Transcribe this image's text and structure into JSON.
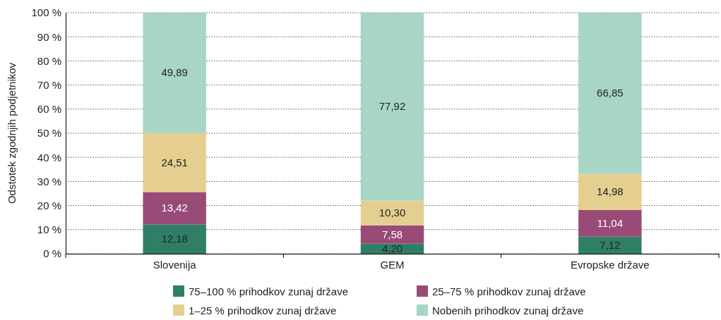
{
  "chart_data": {
    "type": "bar",
    "stacked": true,
    "ylabel": "Odstotek zgodnjih podjetnikov",
    "categories": [
      "Slovenija",
      "GEM",
      "Evropske države"
    ],
    "series": [
      {
        "name": "75–100 % prihodkov zunaj države",
        "color": "#2f7f67",
        "values": [
          12.18,
          4.2,
          7.12
        ],
        "value_labels": [
          "12,18",
          "4,20",
          "7,12"
        ]
      },
      {
        "name": "25–75 % prihodkov zunaj države",
        "color": "#9a4a77",
        "values": [
          13.42,
          7.58,
          11.04
        ],
        "value_labels": [
          "13,42",
          "7,58",
          "11,04"
        ]
      },
      {
        "name": "1–25 % prihodkov zunaj države",
        "color": "#e5cf90",
        "values": [
          24.51,
          10.3,
          14.98
        ],
        "value_labels": [
          "24,51",
          "10,30",
          "14,98"
        ]
      },
      {
        "name": "Nobenih prihodkov zunaj države",
        "color": "#a8d5c5",
        "values": [
          49.89,
          77.92,
          66.85
        ],
        "value_labels": [
          "49,89",
          "77,92",
          "66,85"
        ]
      }
    ],
    "ylim": [
      0,
      100
    ],
    "yticks": [
      {
        "value": 0,
        "label": "0 %"
      },
      {
        "value": 10,
        "label": "10 %"
      },
      {
        "value": 20,
        "label": "20 %"
      },
      {
        "value": 30,
        "label": "30 %"
      },
      {
        "value": 40,
        "label": "40 %"
      },
      {
        "value": 50,
        "label": "50 %"
      },
      {
        "value": 60,
        "label": "60 %"
      },
      {
        "value": 70,
        "label": "70 %"
      },
      {
        "value": 80,
        "label": "80 %"
      },
      {
        "value": 90,
        "label": "90 %"
      },
      {
        "value": 100,
        "label": "100 %"
      }
    ],
    "grid": "y",
    "legend": "bottom"
  }
}
